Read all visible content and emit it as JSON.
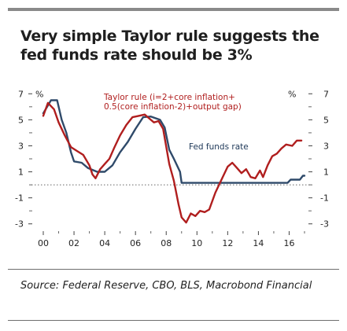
{
  "title": "Very simple Taylor rule suggests the fed funds rate should be 3%",
  "source": "Source: Federal Reserve, CBO, BLS, Macrobond Financial",
  "chart_data": {
    "type": "line",
    "x_ticks": [
      "00",
      "02",
      "04",
      "06",
      "08",
      "10",
      "12",
      "14",
      "16"
    ],
    "y_ticks": [
      7,
      5,
      3,
      1,
      -1,
      -3
    ],
    "y_tick_labels": [
      "7",
      "5",
      "3",
      "1",
      "-1",
      "-3"
    ],
    "ylabel_left": "%",
    "ylabel_right": "%",
    "xlim": [
      2000.0,
      2017.0
    ],
    "ylim": [
      -3.5,
      7.5
    ],
    "reference_line_y": 0,
    "colors": {
      "taylor": "#b01e1e",
      "fed": "#2f4a6a",
      "ref": "#666666"
    },
    "annotations": {
      "taylor_line1": "Taylor rule (i=2+core inflation+",
      "taylor_line2": "0.5(core inflation-2)+output gap)",
      "fed": "Fed funds rate"
    },
    "series": [
      {
        "name": "Taylor rule (i=2+core inflation+0.5(core inflation-2)+output gap)",
        "x": [
          2000.0,
          2000.3,
          2000.7,
          2001.0,
          2001.4,
          2001.8,
          2002.2,
          2002.6,
          2003.0,
          2003.2,
          2003.4,
          2003.7,
          2004.0,
          2004.3,
          2004.6,
          2005.0,
          2005.4,
          2005.8,
          2006.2,
          2006.6,
          2007.0,
          2007.2,
          2007.5,
          2007.8,
          2008.2,
          2008.5,
          2008.8,
          2009.0,
          2009.3,
          2009.6,
          2009.9,
          2010.2,
          2010.5,
          2010.8,
          2011.2,
          2011.6,
          2012.0,
          2012.3,
          2012.6,
          2012.9,
          2013.2,
          2013.5,
          2013.8,
          2014.1,
          2014.3,
          2014.6,
          2014.9,
          2015.2,
          2015.5,
          2015.8,
          2016.2,
          2016.5,
          2016.8
        ],
        "y": [
          5.3,
          6.3,
          5.8,
          4.8,
          3.8,
          2.9,
          2.6,
          2.3,
          1.5,
          0.8,
          0.5,
          1.2,
          1.6,
          2.0,
          2.8,
          3.8,
          4.6,
          5.2,
          5.3,
          5.4,
          5.0,
          4.8,
          4.9,
          4.3,
          1.6,
          0.3,
          -1.5,
          -2.5,
          -2.9,
          -2.2,
          -2.4,
          -2.0,
          -2.1,
          -1.9,
          -0.6,
          0.4,
          1.4,
          1.7,
          1.3,
          0.9,
          1.2,
          0.6,
          0.5,
          1.1,
          0.6,
          1.5,
          2.2,
          2.4,
          2.8,
          3.1,
          3.0,
          3.4,
          3.4
        ]
      },
      {
        "name": "Fed funds rate",
        "x": [
          2000.0,
          2000.5,
          2000.9,
          2001.2,
          2001.5,
          2001.8,
          2002.0,
          2002.5,
          2002.9,
          2003.5,
          2004.0,
          2004.5,
          2005.0,
          2005.5,
          2006.0,
          2006.5,
          2007.0,
          2007.6,
          2007.9,
          2008.2,
          2008.5,
          2008.9,
          2009.0,
          2015.9,
          2016.1,
          2016.7,
          2016.9,
          2017.0
        ],
        "y": [
          5.5,
          6.5,
          6.5,
          5.0,
          4.0,
          2.5,
          1.8,
          1.7,
          1.3,
          1.0,
          1.0,
          1.5,
          2.5,
          3.3,
          4.3,
          5.2,
          5.25,
          5.0,
          4.4,
          2.7,
          2.0,
          1.0,
          0.15,
          0.15,
          0.4,
          0.4,
          0.7,
          0.7
        ]
      }
    ]
  }
}
